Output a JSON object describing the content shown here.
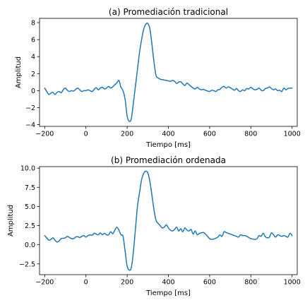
{
  "figure": {
    "background": "#ffffff",
    "line_color": "#1f77b4"
  },
  "chart_data": [
    {
      "type": "line",
      "title": "(a) Promediación tradicional",
      "xlabel": "Tiempo [ms]",
      "ylabel": "Amplitud",
      "xlim": [
        -225,
        1025
      ],
      "ylim": [
        -4.2,
        8.5
      ],
      "xticks": [
        -200,
        0,
        200,
        400,
        600,
        800,
        1000
      ],
      "xtick_labels": [
        "−200",
        "0",
        "200",
        "400",
        "600",
        "800",
        "1000"
      ],
      "yticks": [
        -4,
        -2,
        0,
        2,
        4,
        6,
        8
      ],
      "ytick_labels": [
        "−4",
        "−2",
        "0",
        "2",
        "4",
        "6",
        "8"
      ],
      "grid": false,
      "series": [
        {
          "color": "#1f77b4",
          "x": [
            -200,
            -190,
            -180,
            -170,
            -160,
            -150,
            -140,
            -130,
            -120,
            -110,
            -100,
            -90,
            -80,
            -70,
            -60,
            -50,
            -40,
            -30,
            -20,
            -10,
            0,
            10,
            20,
            30,
            40,
            50,
            60,
            70,
            80,
            90,
            100,
            110,
            120,
            130,
            140,
            150,
            160,
            170,
            180,
            190,
            200,
            210,
            220,
            230,
            240,
            250,
            260,
            270,
            280,
            290,
            300,
            310,
            320,
            330,
            340,
            350,
            360,
            370,
            380,
            390,
            400,
            410,
            420,
            430,
            440,
            450,
            460,
            470,
            480,
            490,
            500,
            510,
            520,
            530,
            540,
            550,
            560,
            570,
            580,
            590,
            600,
            610,
            620,
            630,
            640,
            650,
            660,
            670,
            680,
            690,
            700,
            710,
            720,
            730,
            740,
            750,
            760,
            770,
            780,
            790,
            800,
            810,
            820,
            830,
            840,
            850,
            860,
            870,
            880,
            890,
            900,
            910,
            920,
            930,
            940,
            950,
            960,
            970,
            980,
            990,
            1000
          ],
          "y": [
            0.3,
            -0.1,
            -0.45,
            -0.3,
            -0.2,
            -0.45,
            -0.2,
            -0.1,
            -0.25,
            0.1,
            0.3,
            0.05,
            -0.1,
            0.0,
            -0.05,
            0.15,
            0.3,
            0.1,
            -0.1,
            0.0,
            0.0,
            0.1,
            0.0,
            -0.1,
            0.15,
            0.35,
            0.1,
            0.3,
            0.4,
            0.2,
            0.3,
            0.5,
            0.3,
            0.45,
            0.7,
            0.9,
            1.2,
            0.4,
            0.0,
            -1.0,
            -3.0,
            -3.6,
            -3.3,
            -1.5,
            0.5,
            2.5,
            4.5,
            6.0,
            7.2,
            7.8,
            7.9,
            7.3,
            5.5,
            3.4,
            1.8,
            1.5,
            1.35,
            1.3,
            1.25,
            1.2,
            1.15,
            1.1,
            1.2,
            1.1,
            0.85,
            1.0,
            1.05,
            0.8,
            0.6,
            0.9,
            0.7,
            0.5,
            0.3,
            0.2,
            0.4,
            0.2,
            0.1,
            0.15,
            0.05,
            -0.05,
            -0.1,
            0.05,
            0.0,
            -0.1,
            0.1,
            0.15,
            0.4,
            0.5,
            0.3,
            0.45,
            0.35,
            0.2,
            0.05,
            0.25,
            0.0,
            -0.1,
            0.1,
            0.0,
            0.25,
            0.2,
            0.4,
            0.2,
            0.1,
            0.15,
            0.3,
            0.05,
            0.0,
            0.25,
            0.3,
            0.45,
            0.25,
            0.1,
            0.2,
            0.0,
            0.05,
            -0.1,
            0.3,
            0.1,
            0.25,
            0.3,
            0.3
          ]
        }
      ]
    },
    {
      "type": "line",
      "title": "(b) Promediación ordenada",
      "xlabel": "Tiempo [ms]",
      "ylabel": "Amplitud",
      "xlim": [
        -225,
        1025
      ],
      "ylim": [
        -3.9,
        10.2
      ],
      "xticks": [
        -200,
        0,
        200,
        400,
        600,
        800,
        1000
      ],
      "xtick_labels": [
        "−200",
        "0",
        "200",
        "400",
        "600",
        "800",
        "1000"
      ],
      "yticks": [
        -2.5,
        0.0,
        2.5,
        5.0,
        7.5,
        10.0
      ],
      "ytick_labels": [
        "−2.5",
        "0.0",
        "2.5",
        "5.0",
        "7.5",
        "10.0"
      ],
      "grid": false,
      "series": [
        {
          "color": "#1f77b4",
          "x": [
            -200,
            -190,
            -180,
            -170,
            -160,
            -150,
            -140,
            -130,
            -120,
            -110,
            -100,
            -90,
            -80,
            -70,
            -60,
            -50,
            -40,
            -30,
            -20,
            -10,
            0,
            10,
            20,
            30,
            40,
            50,
            60,
            70,
            80,
            90,
            100,
            110,
            120,
            130,
            140,
            150,
            160,
            170,
            180,
            190,
            200,
            210,
            220,
            230,
            240,
            250,
            260,
            270,
            280,
            290,
            300,
            310,
            320,
            330,
            340,
            350,
            360,
            370,
            380,
            390,
            400,
            410,
            420,
            430,
            440,
            450,
            460,
            470,
            480,
            490,
            500,
            510,
            520,
            530,
            540,
            550,
            560,
            570,
            580,
            590,
            600,
            610,
            620,
            630,
            640,
            650,
            660,
            670,
            680,
            690,
            700,
            710,
            720,
            730,
            740,
            750,
            760,
            770,
            780,
            790,
            800,
            810,
            820,
            830,
            840,
            850,
            860,
            870,
            880,
            890,
            900,
            910,
            920,
            930,
            940,
            950,
            960,
            970,
            980,
            990,
            1000
          ],
          "y": [
            1.2,
            0.9,
            0.6,
            0.7,
            0.9,
            0.6,
            0.35,
            0.5,
            0.8,
            0.85,
            0.9,
            1.1,
            0.95,
            0.8,
            0.8,
            1.0,
            1.05,
            0.95,
            1.1,
            1.2,
            1.0,
            1.2,
            1.3,
            1.25,
            1.5,
            1.4,
            1.3,
            1.55,
            1.3,
            1.5,
            1.3,
            1.3,
            1.7,
            1.45,
            1.9,
            2.3,
            1.9,
            1.3,
            1.1,
            -0.8,
            -2.8,
            -3.3,
            -3.0,
            -1.0,
            2.0,
            5.0,
            6.8,
            8.5,
            9.3,
            9.6,
            9.4,
            8.3,
            6.5,
            4.6,
            3.2,
            2.8,
            2.5,
            2.2,
            2.3,
            2.6,
            2.2,
            1.9,
            1.8,
            2.0,
            2.3,
            1.8,
            2.1,
            1.7,
            2.2,
            1.9,
            1.8,
            2.0,
            1.4,
            1.8,
            1.3,
            1.5,
            1.55,
            1.6,
            1.4,
            1.1,
            0.8,
            0.7,
            0.75,
            0.85,
            1.0,
            1.3,
            1.1,
            1.7,
            1.6,
            1.5,
            1.4,
            1.3,
            1.2,
            1.1,
            1.0,
            1.3,
            1.2,
            1.2,
            1.1,
            0.95,
            0.8,
            0.75,
            0.7,
            0.8,
            1.2,
            1.1,
            1.5,
            1.05,
            0.9,
            1.0,
            1.55,
            1.3,
            1.0,
            1.3,
            1.2,
            1.1,
            1.2,
            1.1,
            1.0,
            1.5,
            1.2
          ]
        }
      ]
    }
  ]
}
